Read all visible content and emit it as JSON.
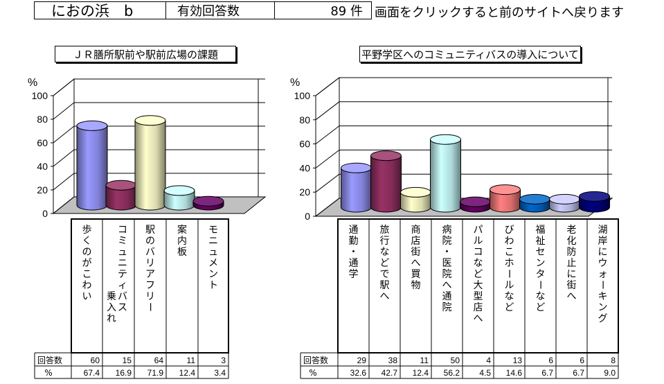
{
  "header": {
    "title": "におの浜　b",
    "count_label": "有効回答数",
    "count_value": "89 件",
    "back_link": "画面をクリックすると前のサイトへ戻ります"
  },
  "table_row_labels": [
    "回答数",
    "%"
  ],
  "chart_data": [
    {
      "type": "bar",
      "title": "ＪＲ膳所駅前や駅前広場の課題",
      "ylabel": "%",
      "ylim": [
        0,
        100
      ],
      "yticks": [
        0,
        20,
        40,
        60,
        80,
        100
      ],
      "categories": [
        "歩くのがこわい",
        "コミュニティバス乗入れ",
        "駅のバリアフリー",
        "案内板",
        "モニュメント"
      ],
      "category_lines": [
        [
          "歩くのがこわい"
        ],
        [
          "コミュニティバス",
          "乗入れ"
        ],
        [
          "駅のバリアフリー"
        ],
        [
          "案内板"
        ],
        [
          "モニュメント"
        ]
      ],
      "counts": [
        60,
        15,
        64,
        11,
        3
      ],
      "values": [
        67.4,
        16.9,
        71.9,
        12.4,
        3.4
      ],
      "colors": [
        "#9999ff",
        "#993366",
        "#ffffcc",
        "#ccffff",
        "#660066"
      ]
    },
    {
      "type": "bar",
      "title": "平野学区へのコミュニティバスの導入について",
      "ylabel": "%",
      "ylim": [
        0,
        100
      ],
      "yticks": [
        0,
        20,
        40,
        60,
        80,
        100
      ],
      "categories": [
        "通勤・通学",
        "旅行などで駅へ",
        "商店街へ買物",
        "病院・医院へ通院",
        "パルコなど大型店へ",
        "びわこホールなど",
        "福祉センターなど",
        "老化防止に街へ",
        "湖岸にウォーキング"
      ],
      "category_lines": [
        [
          "通勤・通学"
        ],
        [
          "旅行などで駅へ"
        ],
        [
          "商店街へ買物"
        ],
        [
          "病院・医院へ通院"
        ],
        [
          "パルコなど大型店へ"
        ],
        [
          "びわこホールなど"
        ],
        [
          "福祉センターなど"
        ],
        [
          "老化防止に街へ"
        ],
        [
          "湖岸にウォーキング"
        ]
      ],
      "counts": [
        29,
        38,
        11,
        50,
        4,
        13,
        6,
        6,
        8
      ],
      "values": [
        32.6,
        42.7,
        12.4,
        56.2,
        4.5,
        14.6,
        6.7,
        6.7,
        9.0
      ],
      "colors": [
        "#9999ff",
        "#993366",
        "#ffffcc",
        "#ccffff",
        "#660066",
        "#ff8080",
        "#0066cc",
        "#ccccff",
        "#000080"
      ]
    }
  ]
}
